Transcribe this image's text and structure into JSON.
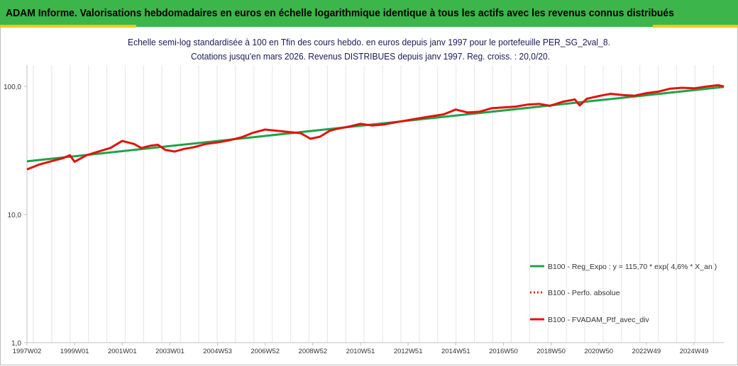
{
  "header": {
    "title": "ADAM Informe. Valorisations hebdomadaires en euros en échelle logarithmique identique à tous les actifs avec les revenus connus distribués"
  },
  "colors": {
    "header_bg": "#3cb54a",
    "accent": "#f5c518",
    "regression": "#1fa24a",
    "perf_absolue": "#d7261e",
    "ptf": "#e3120b"
  },
  "chart_data": {
    "type": "line",
    "title_line1": "Echelle semi-log standardisée  à 100 en Tfin des cours hebdo.  en euros depuis janv 1997 pour le portefeuille PER_SG_2val_8.",
    "title_line2": "Cotations  jusqu'en mars 2026. Revenus DISTRIBUES depuis janv 1997. Reg. croiss. : 20,0/20.",
    "y_scale": "log",
    "ylim": [
      1,
      200
    ],
    "y_ticks": [
      {
        "value": 1,
        "label": "1,0"
      },
      {
        "value": 10,
        "label": "10,0"
      },
      {
        "value": 100,
        "label": "100,0"
      }
    ],
    "xlim": [
      1997.0,
      2026.25
    ],
    "x_ticks": [
      {
        "x": 1997.0,
        "label": "1997W02"
      },
      {
        "x": 1999.0,
        "label": "1999W01"
      },
      {
        "x": 2001.0,
        "label": "2001W01"
      },
      {
        "x": 2003.0,
        "label": "2003W01"
      },
      {
        "x": 2005.0,
        "label": "2004W53"
      },
      {
        "x": 2007.0,
        "label": "2006W52"
      },
      {
        "x": 2009.0,
        "label": "2008W52"
      },
      {
        "x": 2011.0,
        "label": "2010W51"
      },
      {
        "x": 2013.0,
        "label": "2012W51"
      },
      {
        "x": 2015.0,
        "label": "2014W51"
      },
      {
        "x": 2017.0,
        "label": "2016W50"
      },
      {
        "x": 2019.0,
        "label": "2018W50"
      },
      {
        "x": 2021.0,
        "label": "2020W50"
      },
      {
        "x": 2023.0,
        "label": "2022W49"
      },
      {
        "x": 2025.0,
        "label": "2024W49"
      }
    ],
    "grid": "vertical",
    "legend_position": "bottom-right",
    "series": [
      {
        "name": "B100 - Reg_Expo : y = 115,70 * exp( 4,6% * X_an )",
        "style": "solid",
        "color": "#1fa24a",
        "x": [
          1997.0,
          2026.25
        ],
        "y": [
          26.0,
          99.0
        ]
      },
      {
        "name": "B100 - Perfo. absolue",
        "style": "dotted",
        "color": "#d7261e",
        "x": [],
        "y": []
      },
      {
        "name": "B100 - FVADAM_Ptf_avec_div",
        "style": "solid",
        "color": "#e3120b",
        "x": [
          1997.0,
          1997.5,
          1998.0,
          1998.5,
          1998.8,
          1999.0,
          1999.5,
          2000.0,
          2000.5,
          2001.0,
          2001.5,
          2001.8,
          2002.2,
          2002.5,
          2002.8,
          2003.2,
          2003.6,
          2004.0,
          2004.5,
          2005.0,
          2005.5,
          2006.0,
          2006.5,
          2007.0,
          2007.5,
          2008.0,
          2008.5,
          2008.9,
          2009.3,
          2009.7,
          2010.0,
          2010.5,
          2011.0,
          2011.5,
          2012.0,
          2012.5,
          2013.0,
          2013.5,
          2014.0,
          2014.5,
          2015.0,
          2015.5,
          2016.0,
          2016.5,
          2017.0,
          2017.5,
          2018.0,
          2018.5,
          2018.95,
          2019.5,
          2020.0,
          2020.2,
          2020.5,
          2021.0,
          2021.5,
          2022.0,
          2022.5,
          2023.0,
          2023.5,
          2024.0,
          2024.5,
          2025.0,
          2025.5,
          2026.0,
          2026.25
        ],
        "y": [
          22.5,
          24.5,
          26.0,
          27.5,
          29.0,
          25.8,
          29.0,
          31.0,
          33.0,
          37.5,
          35.5,
          33.0,
          34.5,
          35.0,
          32.0,
          31.0,
          32.5,
          33.5,
          35.5,
          36.5,
          38.0,
          40.0,
          43.5,
          46.0,
          45.0,
          44.0,
          43.0,
          39.0,
          40.5,
          45.0,
          46.5,
          48.5,
          51.0,
          49.5,
          50.5,
          52.5,
          54.5,
          56.5,
          58.5,
          60.5,
          66.0,
          62.5,
          63.5,
          67.5,
          68.5,
          69.5,
          72.0,
          73.0,
          70.5,
          76.0,
          79.0,
          71.0,
          80.0,
          84.0,
          87.5,
          85.5,
          84.5,
          88.5,
          91.0,
          96.0,
          97.5,
          96.5,
          99.5,
          102.0,
          100.0
        ]
      }
    ]
  }
}
